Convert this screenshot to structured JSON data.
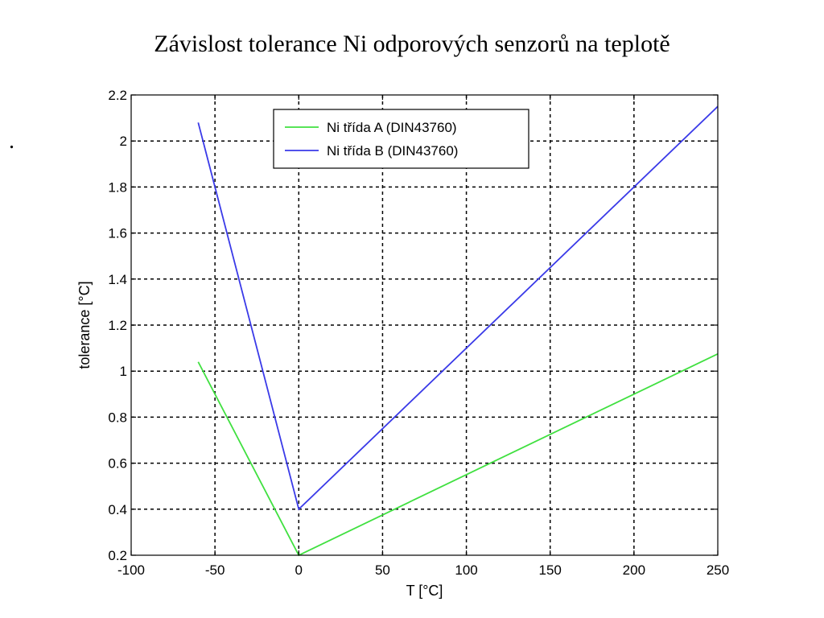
{
  "slide": {
    "title": "Závislost tolerance Ni odporových senzorů na teplotě",
    "side_mark": "."
  },
  "chart_data": {
    "type": "line",
    "xlabel": "T [°C]",
    "ylabel": "tolerance [°C]",
    "xlim": [
      -100,
      250
    ],
    "ylim": [
      0.2,
      2.2
    ],
    "x_ticks": [
      -100,
      -50,
      0,
      50,
      100,
      150,
      200,
      250
    ],
    "y_ticks": [
      0.2,
      0.4,
      0.6,
      0.8,
      1,
      1.2,
      1.4,
      1.6,
      1.8,
      2,
      2.2
    ],
    "x_tick_labels": [
      "-100",
      "-50",
      "0",
      "50",
      "100",
      "150",
      "200",
      "250"
    ],
    "y_tick_labels": [
      "0.2",
      "0.4",
      "0.6",
      "0.8",
      "1",
      "1.2",
      "1.4",
      "1.6",
      "1.8",
      "2",
      "2.2"
    ],
    "grid": true,
    "legend_position": "top-center",
    "series": [
      {
        "name": "Ni třída A (DIN43760)",
        "color": "#40e040",
        "x": [
          -60,
          0,
          250
        ],
        "y": [
          1.04,
          0.2,
          1.075
        ]
      },
      {
        "name": "Ni třída B (DIN43760)",
        "color": "#3a3ae8",
        "x": [
          -60,
          0,
          250
        ],
        "y": [
          2.08,
          0.4,
          2.15
        ]
      }
    ]
  }
}
